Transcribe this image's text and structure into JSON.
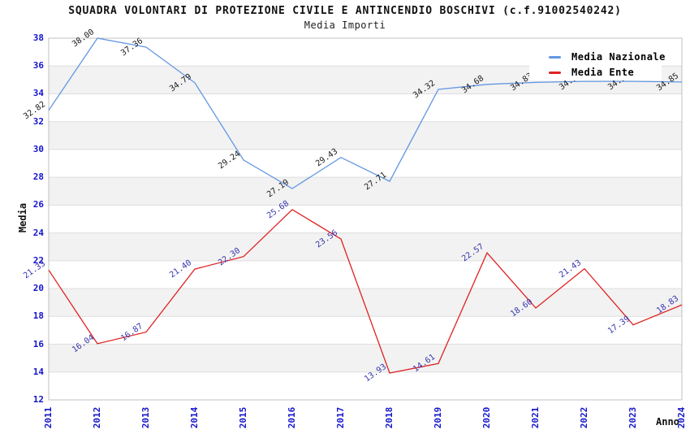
{
  "header": {
    "title": "SQUADRA VOLONTARI DI PROTEZIONE CIVILE E ANTINCENDIO BOSCHIVI (c.f.91002540242)",
    "subtitle": "Media Importi"
  },
  "legend": {
    "items": [
      {
        "label": "Media Nazionale",
        "color": "#6397E3"
      },
      {
        "label": "Media Ente",
        "color": "#E02222"
      }
    ]
  },
  "axes": {
    "y_label": "Media",
    "x_label": "Anno",
    "y_tick_color": "#1414CC",
    "x_tick_color": "#1414CC"
  },
  "chart_data": {
    "type": "line",
    "title": "SQUADRA VOLONTARI DI PROTEZIONE CIVILE E ANTINCENDIO BOSCHIVI (c.f.91002540242)",
    "subtitle": "Media Importi",
    "xlabel": "Anno",
    "ylabel": "Media",
    "x": [
      "2011",
      "2012",
      "2013",
      "2014",
      "2015",
      "2016",
      "2017",
      "2018",
      "2019",
      "2020",
      "2021",
      "2022",
      "2023",
      "2024"
    ],
    "ylim": [
      12,
      38
    ],
    "ytick_step": 2,
    "grid": "horizontal-only",
    "band_fill": "alternating gray/white every 2 units",
    "legend_position": "top-right-inside",
    "labels_hidden_by_legend": {
      "series": "Media Nazionale",
      "years": [
        "2022",
        "2023"
      ],
      "values_estimated": true
    },
    "series": [
      {
        "name": "Media Nazionale",
        "color": "#6397E3",
        "label_color": "#1A1A1A",
        "values": [
          32.82,
          38.0,
          37.36,
          34.79,
          29.24,
          27.19,
          29.43,
          27.71,
          34.32,
          34.68,
          34.83,
          34.9,
          34.9,
          34.85
        ],
        "labels": [
          "32.82",
          "38.00",
          "37.36",
          "34.79",
          "29.24",
          "27.19",
          "29.43",
          "27.71",
          "34.32",
          "34.68",
          "34.83",
          "34.90",
          "34.90",
          "34.85"
        ]
      },
      {
        "name": "Media Ente",
        "color": "#E02222",
        "label_color": "#3434AE",
        "values": [
          21.33,
          16.04,
          16.87,
          21.4,
          22.3,
          25.68,
          23.56,
          13.93,
          14.61,
          22.57,
          18.6,
          21.43,
          17.39,
          18.83
        ],
        "labels": [
          "21.33",
          "16.04",
          "16.87",
          "21.40",
          "22.30",
          "25.68",
          "23.56",
          "13.93",
          "14.61",
          "22.57",
          "18.60",
          "21.43",
          "17.39",
          "18.83"
        ]
      }
    ],
    "style": {
      "band_gray": "#F2F2F2",
      "gridline": "#DEDEDE",
      "plot_border": "#C0C0C0"
    }
  }
}
